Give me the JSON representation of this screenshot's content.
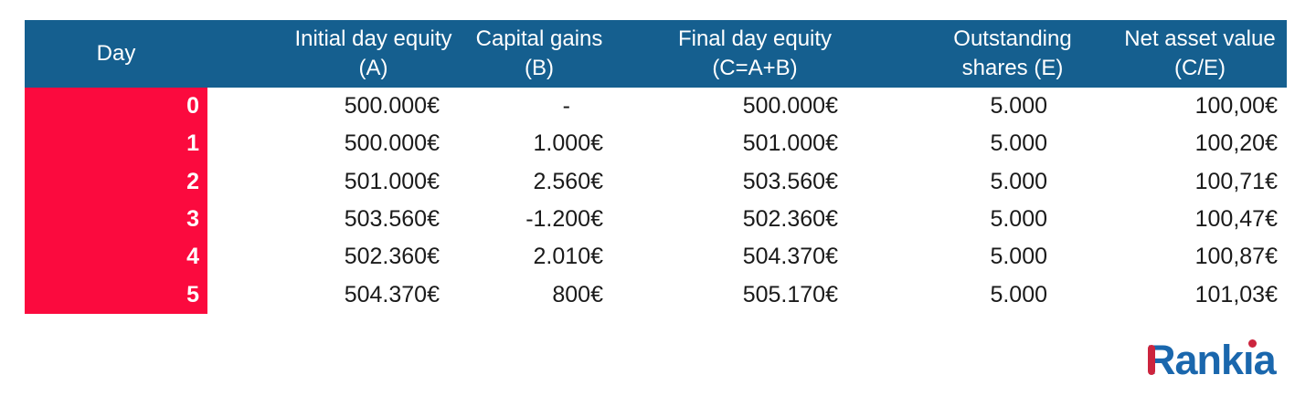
{
  "chart_data": {
    "type": "table",
    "columns": [
      "Day",
      "Initial day equity (A)",
      "Capital gains (B)",
      "Final day equity (C=A+B)",
      "Outstanding shares (E)",
      "Net asset value (C/E)"
    ],
    "rows": [
      [
        "0",
        "500.000€",
        "-",
        "500.000€",
        "5.000",
        "100,00€"
      ],
      [
        "1",
        "500.000€",
        "1.000€",
        "501.000€",
        "5.000",
        "100,20€"
      ],
      [
        "2",
        "501.000€",
        "2.560€",
        "503.560€",
        "5.000",
        "100,71€"
      ],
      [
        "3",
        "503.560€",
        "-1.200€",
        "502.360€",
        "5.000",
        "100,47€"
      ],
      [
        "4",
        "502.360€",
        "2.010€",
        "504.370€",
        "5.000",
        "100,87€"
      ],
      [
        "5",
        "504.370€",
        "800€",
        "505.170€",
        "5.000",
        "101,03€"
      ]
    ],
    "title": "",
    "legend": null,
    "grid": false
  },
  "table": {
    "columns": [
      {
        "id": "day",
        "header_line1": "Day",
        "header_line2": ""
      },
      {
        "id": "initial_equity",
        "header_line1": "Initial day equity",
        "header_line2": "(A)"
      },
      {
        "id": "capital_gains",
        "header_line1": "Capital gains",
        "header_line2": "(B)"
      },
      {
        "id": "final_equity",
        "header_line1": "Final day equity",
        "header_line2": "(C=A+B)"
      },
      {
        "id": "shares",
        "header_line1": "Outstanding",
        "header_line2": "shares (E)"
      },
      {
        "id": "nav",
        "header_line1": "Net asset value",
        "header_line2": "(C/E)"
      }
    ]
  },
  "logo": {
    "name": "Rankia",
    "part1": "Rank",
    "part2": "ı",
    "part3": "a"
  },
  "colors": {
    "header_bg": "#155f8f",
    "day_col_bg": "#fb0a3e",
    "value_text": "#1a1a1a",
    "logo_blue": "#1a67ad",
    "logo_red": "#cc253e"
  }
}
